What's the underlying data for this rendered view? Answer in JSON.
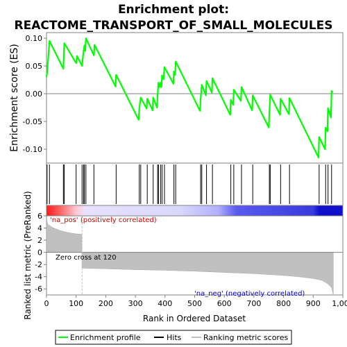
{
  "title_line1": "Enrichment plot:",
  "title_line2": "REACTOME_TRANSPORT_OF_SMALL_MOLECULES",
  "colors": {
    "enrichment_line": "#00ff00",
    "hits": "#000000",
    "ranked_fill": "#c0c0c0",
    "zero_cross_line": "#c0c0c0",
    "pos_label": "#cc0000",
    "neg_label": "#0000cc"
  },
  "chart_data": {
    "type": "line",
    "ylabel_top": "Enrichment score (ES)",
    "ylabel_bottom": "Ranked list metric (PreRanked)",
    "xlabel": "Rank in Ordered Dataset",
    "x_ticks": [
      0,
      100,
      200,
      300,
      400,
      500,
      600,
      700,
      800,
      900,
      1000
    ],
    "x_tick_labels": [
      "0",
      "100",
      "200",
      "300",
      "400",
      "500",
      "600",
      "700",
      "800",
      "900",
      "1,000"
    ],
    "es_y_ticks": [
      0.1,
      0.05,
      0.0,
      -0.05,
      -0.1
    ],
    "es_y_tick_labels": [
      "0.10",
      "0.05",
      "0.00",
      "-0.05",
      "-0.10"
    ],
    "rank_y_ticks": [
      6,
      4,
      2,
      0,
      -2,
      -4,
      -6
    ],
    "rank_y_tick_labels": [
      "6",
      "4",
      "2",
      "0",
      "-2",
      "-4",
      "-6"
    ],
    "xlim": [
      0,
      1000
    ],
    "es_ylim": [
      -0.125,
      0.11
    ],
    "rank_ylim": [
      -7,
      6
    ],
    "hits": [
      2,
      10,
      57,
      60,
      100,
      120,
      125,
      128,
      133,
      160,
      235,
      313,
      318,
      340,
      360,
      375,
      378,
      385,
      390,
      398,
      430,
      436,
      520,
      524,
      540,
      560,
      622,
      632,
      658,
      696,
      752,
      755,
      790,
      820,
      920,
      942,
      950,
      962
    ],
    "es_points": [
      [
        0,
        0.03
      ],
      [
        2,
        0.038
      ],
      [
        10,
        0.095
      ],
      [
        57,
        0.045
      ],
      [
        60,
        0.091
      ],
      [
        100,
        0.055
      ],
      [
        103,
        0.068
      ],
      [
        120,
        0.05
      ],
      [
        125,
        0.077
      ],
      [
        128,
        0.087
      ],
      [
        131,
        0.077
      ],
      [
        133,
        0.1
      ],
      [
        160,
        0.069
      ],
      [
        162,
        0.088
      ],
      [
        233,
        0.013
      ],
      [
        235,
        0.034
      ],
      [
        311,
        -0.047
      ],
      [
        313,
        -0.027
      ],
      [
        318,
        -0.007
      ],
      [
        338,
        -0.027
      ],
      [
        340,
        -0.009
      ],
      [
        358,
        -0.03
      ],
      [
        360,
        -0.007
      ],
      [
        373,
        -0.025
      ],
      [
        375,
        -0.002
      ],
      [
        378,
        0.02
      ],
      [
        383,
        0.012
      ],
      [
        385,
        0.02
      ],
      [
        388,
        0.012
      ],
      [
        390,
        0.033
      ],
      [
        395,
        0.026
      ],
      [
        398,
        0.048
      ],
      [
        428,
        0.018
      ],
      [
        430,
        0.04
      ],
      [
        434,
        0.034
      ],
      [
        436,
        0.058
      ],
      [
        518,
        -0.031
      ],
      [
        520,
        -0.012
      ],
      [
        524,
        0.016
      ],
      [
        538,
        -0.003
      ],
      [
        540,
        0.023
      ],
      [
        558,
        0.002
      ],
      [
        560,
        0.028
      ],
      [
        620,
        -0.038
      ],
      [
        622,
        -0.011
      ],
      [
        630,
        -0.02
      ],
      [
        632,
        0.007
      ],
      [
        656,
        -0.013
      ],
      [
        658,
        0.012
      ],
      [
        694,
        -0.03
      ],
      [
        696,
        -0.003
      ],
      [
        750,
        -0.061
      ],
      [
        752,
        -0.035
      ],
      [
        755,
        -0.002
      ],
      [
        788,
        -0.038
      ],
      [
        790,
        -0.009
      ],
      [
        818,
        -0.037
      ],
      [
        820,
        -0.008
      ],
      [
        918,
        -0.115
      ],
      [
        920,
        -0.078
      ],
      [
        940,
        -0.1
      ],
      [
        942,
        -0.061
      ],
      [
        948,
        -0.068
      ],
      [
        950,
        -0.026
      ],
      [
        960,
        -0.043
      ],
      [
        962,
        0.005
      ],
      [
        966,
        0.002
      ]
    ],
    "ranked_metric": [
      [
        0,
        5.5
      ],
      [
        5,
        4.6
      ],
      [
        20,
        4.1
      ],
      [
        40,
        3.7
      ],
      [
        60,
        3.4
      ],
      [
        80,
        3.2
      ],
      [
        100,
        3.05
      ],
      [
        119,
        2.95
      ],
      [
        120,
        -2.6
      ],
      [
        200,
        -2.7
      ],
      [
        300,
        -2.85
      ],
      [
        400,
        -2.95
      ],
      [
        500,
        -3.1
      ],
      [
        600,
        -3.3
      ],
      [
        700,
        -3.5
      ],
      [
        800,
        -3.8
      ],
      [
        850,
        -4.0
      ],
      [
        900,
        -4.3
      ],
      [
        930,
        -4.6
      ],
      [
        950,
        -5.2
      ],
      [
        962,
        -5.8
      ],
      [
        968,
        -7.0
      ]
    ],
    "zero_cross_rank": 120,
    "zero_cross_label": "Zero cross at 120",
    "pos_label": "'na_pos' (positively correlated)",
    "neg_label": "'na_neg' (negatively correlated)",
    "legend_placement": "bottom-center",
    "legend": [
      "Enrichment profile",
      "Hits",
      "Ranking metric scores"
    ]
  }
}
